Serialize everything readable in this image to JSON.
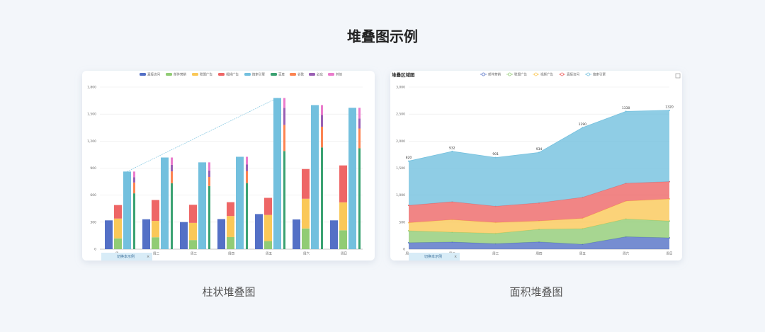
{
  "title": "堆叠图示例",
  "captions": [
    "柱状堆叠图",
    "面积堆叠图"
  ],
  "tab_label": "切换本示例",
  "chart_data": [
    {
      "type": "bar",
      "categories": [
        "周一",
        "周二",
        "周三",
        "周四",
        "周五",
        "周六",
        "周日"
      ],
      "ylim": [
        0,
        1800
      ],
      "yticks": [
        0,
        300,
        600,
        900,
        {
          "value": 1200,
          "label": "1,200"
        },
        {
          "value": 1500,
          "label": "1,500"
        },
        {
          "value": 1800,
          "label": "1,800"
        }
      ],
      "grid": true,
      "series": [
        {
          "name": "直接访问",
          "color": "#5470c6",
          "stack": 1,
          "values": [
            320,
            332,
            301,
            334,
            390,
            330,
            320
          ]
        },
        {
          "name": "邮件营销",
          "color": "#91cc75",
          "stack": 2,
          "values": [
            120,
            132,
            101,
            134,
            90,
            230,
            210
          ]
        },
        {
          "name": "联盟广告",
          "color": "#fac858",
          "stack": 2,
          "values": [
            220,
            182,
            191,
            234,
            290,
            330,
            310
          ]
        },
        {
          "name": "视频广告",
          "color": "#ee6666",
          "stack": 2,
          "values": [
            150,
            232,
            201,
            154,
            190,
            330,
            410
          ]
        },
        {
          "name": "搜索引擎",
          "color": "#73c0de",
          "stack": 3,
          "values": [
            862,
            1018,
            964,
            1026,
            1679,
            1600,
            1570
          ]
        },
        {
          "name": "百度",
          "color": "#3ba272",
          "stack": 4,
          "values": [
            620,
            732,
            701,
            734,
            1090,
            1130,
            1120
          ]
        },
        {
          "name": "谷歌",
          "color": "#fc8452",
          "stack": 4,
          "values": [
            120,
            132,
            101,
            134,
            290,
            230,
            220
          ]
        },
        {
          "name": "必应",
          "color": "#9a60b4",
          "stack": 4,
          "values": [
            60,
            72,
            71,
            74,
            190,
            130,
            110
          ]
        },
        {
          "name": "其他",
          "color": "#ea7ccc",
          "stack": 4,
          "values": [
            62,
            82,
            91,
            84,
            109,
            110,
            120
          ]
        }
      ]
    },
    {
      "type": "area",
      "title": "堆叠区域图",
      "categories": [
        "周一",
        "周二",
        "周三",
        "周四",
        "周五",
        "周六",
        "周日"
      ],
      "ylim": [
        0,
        3000
      ],
      "yticks": [
        0,
        500,
        {
          "value": 1000,
          "label": "1,000"
        },
        {
          "value": 1500,
          "label": "1,500"
        },
        {
          "value": 2000,
          "label": "2,000"
        },
        {
          "value": 2500,
          "label": "2,500"
        },
        {
          "value": 3000,
          "label": "3,000"
        }
      ],
      "grid": true,
      "series": [
        {
          "name": "邮件营销",
          "color": "#5470c6",
          "values": [
            120,
            132,
            101,
            134,
            90,
            230,
            210
          ]
        },
        {
          "name": "联盟广告",
          "color": "#91cc75",
          "values": [
            220,
            182,
            191,
            234,
            290,
            330,
            310
          ]
        },
        {
          "name": "视频广告",
          "color": "#fac858",
          "values": [
            150,
            232,
            201,
            154,
            190,
            330,
            410
          ]
        },
        {
          "name": "直接访问",
          "color": "#ee6666",
          "values": [
            320,
            332,
            301,
            334,
            390,
            330,
            320
          ]
        },
        {
          "name": "搜索引擎",
          "color": "#73c0de",
          "values": [
            820,
            932,
            901,
            934,
            1290,
            1330,
            1320
          ],
          "labels_shown": true
        }
      ]
    }
  ]
}
